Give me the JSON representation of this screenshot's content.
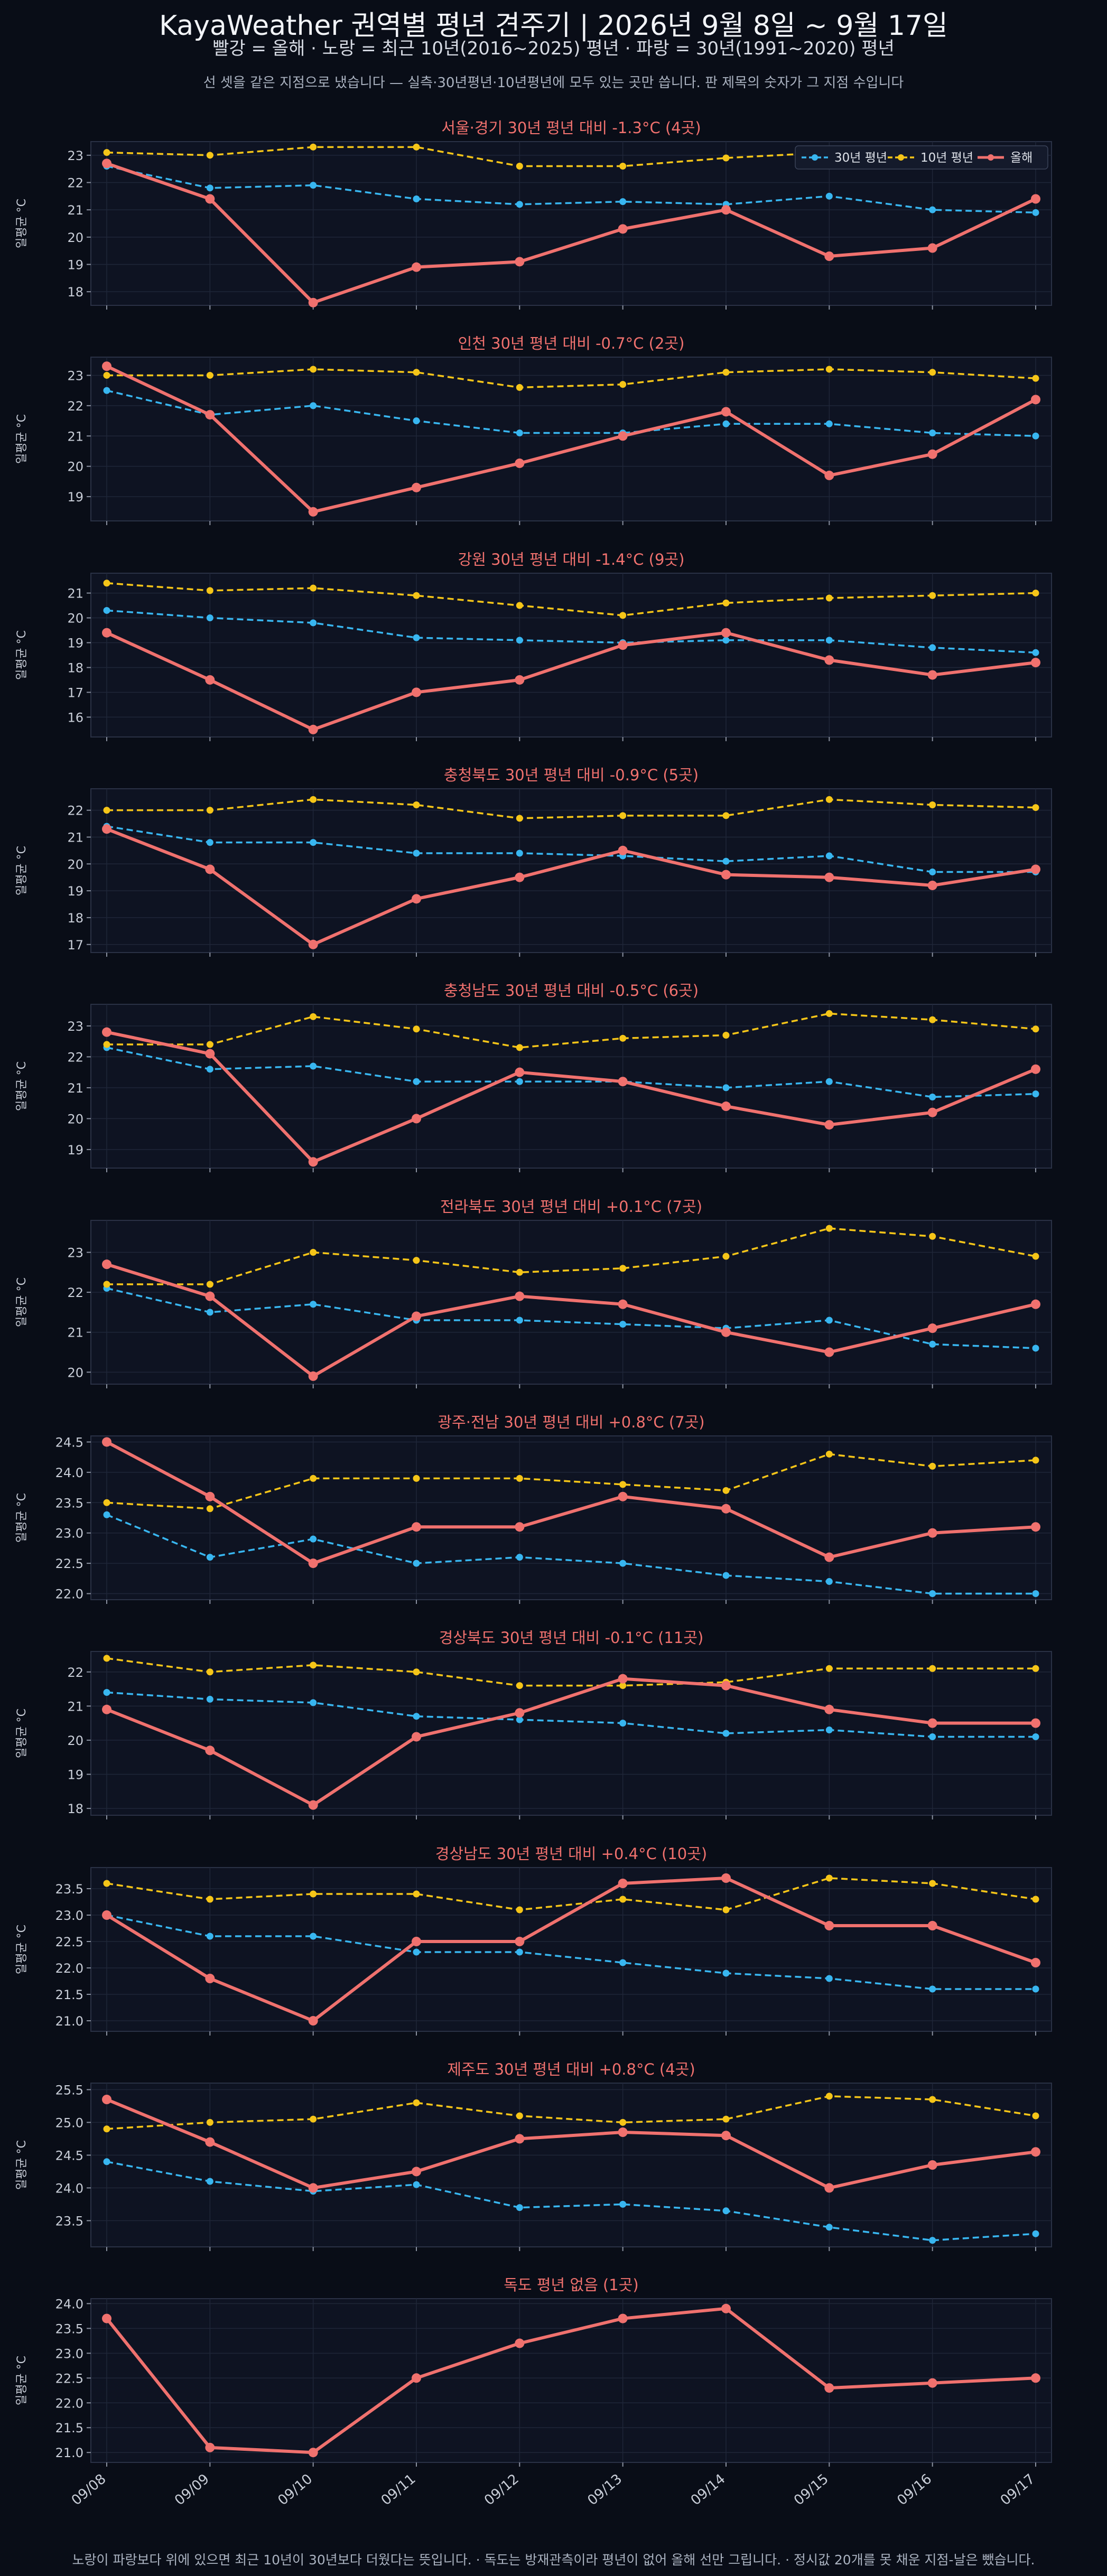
{
  "header": {
    "title": "KayaWeather 권역별 평년 견주기 | 2026년 9월 8일 ~ 9월 17일",
    "subtitle": "빨강 = 올해 · 노랑 = 최근 10년(2016~2025) 평년 · 파랑 = 30년(1991~2020) 평년",
    "note": "선 셋을 같은 지점으로 냈습니다 — 실측·30년평년·10년평년에 모두 있는 곳만 씁니다. 판 제목의 숫자가 그 지점 수입니다"
  },
  "footer": "노랑이 파랑보다 위에 있으면 최근 10년이 30년보다 더웠다는 뜻입니다. · 독도는 방재관측이라 평년이 없어 올해 선만 그립니다. · 정시값 20개를 못 채운 지점-날은 뺐습니다.",
  "colors": {
    "this_year": "#f0716e",
    "ten_year": "#f5c518",
    "thirty_year": "#38b6f0",
    "panel_bg": "#0e1322",
    "grid": "#1f2638",
    "text": "#c9ced8",
    "title": "#f0716e"
  },
  "chart_data": {
    "type": "line",
    "x": [
      "09/08",
      "09/09",
      "09/10",
      "09/11",
      "09/12",
      "09/13",
      "09/14",
      "09/15",
      "09/16",
      "09/17"
    ],
    "ylabel": "일평균 °C",
    "legend": {
      "placement": "top-right",
      "entries": [
        "30년 평년",
        "10년 평년",
        "올해"
      ]
    },
    "grid": true,
    "panels": [
      {
        "title": "서울·경기 30년 평년 대비 -1.3°C (4곳)",
        "ylim": [
          17.5,
          23.5
        ],
        "yticks": [
          18,
          19,
          20,
          21,
          22,
          23
        ],
        "series": [
          {
            "name": "30년 평년",
            "values": [
              22.6,
              21.8,
              21.9,
              21.4,
              21.2,
              21.3,
              21.2,
              21.5,
              21.0,
              20.9
            ]
          },
          {
            "name": "10년 평년",
            "values": [
              23.1,
              23.0,
              23.3,
              23.3,
              22.6,
              22.6,
              22.9,
              23.1,
              23.2,
              23.2
            ]
          },
          {
            "name": "올해",
            "values": [
              22.7,
              21.4,
              17.6,
              18.9,
              19.1,
              20.3,
              21.0,
              19.3,
              19.6,
              21.4
            ]
          }
        ]
      },
      {
        "title": "인천 30년 평년 대비 -0.7°C (2곳)",
        "ylim": [
          18.2,
          23.6
        ],
        "yticks": [
          19,
          20,
          21,
          22,
          23
        ],
        "series": [
          {
            "name": "30년 평년",
            "values": [
              22.5,
              21.7,
              22.0,
              21.5,
              21.1,
              21.1,
              21.4,
              21.4,
              21.1,
              21.0
            ]
          },
          {
            "name": "10년 평년",
            "values": [
              23.0,
              23.0,
              23.2,
              23.1,
              22.6,
              22.7,
              23.1,
              23.2,
              23.1,
              22.9
            ]
          },
          {
            "name": "올해",
            "values": [
              23.3,
              21.7,
              18.5,
              19.3,
              20.1,
              21.0,
              21.8,
              19.7,
              20.4,
              22.2
            ]
          }
        ]
      },
      {
        "title": "강원 30년 평년 대비 -1.4°C (9곳)",
        "ylim": [
          15.2,
          21.8
        ],
        "yticks": [
          16,
          17,
          18,
          19,
          20,
          21
        ],
        "series": [
          {
            "name": "30년 평년",
            "values": [
              20.3,
              20.0,
              19.8,
              19.2,
              19.1,
              19.0,
              19.1,
              19.1,
              18.8,
              18.6
            ]
          },
          {
            "name": "10년 평년",
            "values": [
              21.4,
              21.1,
              21.2,
              20.9,
              20.5,
              20.1,
              20.6,
              20.8,
              20.9,
              21.0
            ]
          },
          {
            "name": "올해",
            "values": [
              19.4,
              17.5,
              15.5,
              17.0,
              17.5,
              18.9,
              19.4,
              18.3,
              17.7,
              18.2
            ]
          }
        ]
      },
      {
        "title": "충청북도 30년 평년 대비 -0.9°C (5곳)",
        "ylim": [
          16.7,
          22.8
        ],
        "yticks": [
          17,
          18,
          19,
          20,
          21,
          22
        ],
        "series": [
          {
            "name": "30년 평년",
            "values": [
              21.4,
              20.8,
              20.8,
              20.4,
              20.4,
              20.3,
              20.1,
              20.3,
              19.7,
              19.7
            ]
          },
          {
            "name": "10년 평년",
            "values": [
              22.0,
              22.0,
              22.4,
              22.2,
              21.7,
              21.8,
              21.8,
              22.4,
              22.2,
              22.1
            ]
          },
          {
            "name": "올해",
            "values": [
              21.3,
              19.8,
              17.0,
              18.7,
              19.5,
              20.5,
              19.6,
              19.5,
              19.2,
              19.8
            ]
          }
        ]
      },
      {
        "title": "충청남도 30년 평년 대비 -0.5°C (6곳)",
        "ylim": [
          18.4,
          23.7
        ],
        "yticks": [
          19,
          20,
          21,
          22,
          23
        ],
        "series": [
          {
            "name": "30년 평년",
            "values": [
              22.3,
              21.6,
              21.7,
              21.2,
              21.2,
              21.2,
              21.0,
              21.2,
              20.7,
              20.8
            ]
          },
          {
            "name": "10년 평년",
            "values": [
              22.4,
              22.4,
              23.3,
              22.9,
              22.3,
              22.6,
              22.7,
              23.4,
              23.2,
              22.9
            ]
          },
          {
            "name": "올해",
            "values": [
              22.8,
              22.1,
              18.6,
              20.0,
              21.5,
              21.2,
              20.4,
              19.8,
              20.2,
              21.6
            ]
          }
        ]
      },
      {
        "title": "전라북도 30년 평년 대비 +0.1°C (7곳)",
        "ylim": [
          19.7,
          23.8
        ],
        "yticks": [
          20,
          21,
          22,
          23
        ],
        "series": [
          {
            "name": "30년 평년",
            "values": [
              22.1,
              21.5,
              21.7,
              21.3,
              21.3,
              21.2,
              21.1,
              21.3,
              20.7,
              20.6
            ]
          },
          {
            "name": "10년 평년",
            "values": [
              22.2,
              22.2,
              23.0,
              22.8,
              22.5,
              22.6,
              22.9,
              23.6,
              23.4,
              22.9
            ]
          },
          {
            "name": "올해",
            "values": [
              22.7,
              21.9,
              19.9,
              21.4,
              21.9,
              21.7,
              21.0,
              20.5,
              21.1,
              21.7
            ]
          }
        ]
      },
      {
        "title": "광주·전남 30년 평년 대비 +0.8°C (7곳)",
        "ylim": [
          21.9,
          24.6
        ],
        "yticks": [
          22.0,
          22.5,
          23.0,
          23.5,
          24.0,
          24.5
        ],
        "series": [
          {
            "name": "30년 평년",
            "values": [
              23.3,
              22.6,
              22.9,
              22.5,
              22.6,
              22.5,
              22.3,
              22.2,
              22.0,
              22.0
            ]
          },
          {
            "name": "10년 평년",
            "values": [
              23.5,
              23.4,
              23.9,
              23.9,
              23.9,
              23.8,
              23.7,
              24.3,
              24.1,
              24.2
            ]
          },
          {
            "name": "올해",
            "values": [
              24.5,
              23.6,
              22.5,
              23.1,
              23.1,
              23.6,
              23.4,
              22.6,
              23.0,
              23.1
            ]
          }
        ]
      },
      {
        "title": "경상북도 30년 평년 대비 -0.1°C (11곳)",
        "ylim": [
          17.8,
          22.6
        ],
        "yticks": [
          18,
          19,
          20,
          21,
          22
        ],
        "series": [
          {
            "name": "30년 평년",
            "values": [
              21.4,
              21.2,
              21.1,
              20.7,
              20.6,
              20.5,
              20.2,
              20.3,
              20.1,
              20.1
            ]
          },
          {
            "name": "10년 평년",
            "values": [
              22.4,
              22.0,
              22.2,
              22.0,
              21.6,
              21.6,
              21.7,
              22.1,
              22.1,
              22.1
            ]
          },
          {
            "name": "올해",
            "values": [
              20.9,
              19.7,
              18.1,
              20.1,
              20.8,
              21.8,
              21.6,
              20.9,
              20.5,
              20.5
            ]
          }
        ]
      },
      {
        "title": "경상남도 30년 평년 대비 +0.4°C (10곳)",
        "ylim": [
          20.8,
          23.9
        ],
        "yticks": [
          21.0,
          21.5,
          22.0,
          22.5,
          23.0,
          23.5
        ],
        "series": [
          {
            "name": "30년 평년",
            "values": [
              23.0,
              22.6,
              22.6,
              22.3,
              22.3,
              22.1,
              21.9,
              21.8,
              21.6,
              21.6
            ]
          },
          {
            "name": "10년 평년",
            "values": [
              23.6,
              23.3,
              23.4,
              23.4,
              23.1,
              23.3,
              23.1,
              23.7,
              23.6,
              23.3
            ]
          },
          {
            "name": "올해",
            "values": [
              23.0,
              21.8,
              21.0,
              22.5,
              22.5,
              23.6,
              23.7,
              22.8,
              22.8,
              22.1
            ]
          }
        ]
      },
      {
        "title": "제주도 30년 평년 대비 +0.8°C (4곳)",
        "ylim": [
          23.1,
          25.6
        ],
        "yticks": [
          23.5,
          24.0,
          24.5,
          25.0,
          25.5
        ],
        "series": [
          {
            "name": "30년 평년",
            "values": [
              24.4,
              24.1,
              23.95,
              24.05,
              23.7,
              23.75,
              23.65,
              23.4,
              23.2,
              23.3
            ]
          },
          {
            "name": "10년 평년",
            "values": [
              24.9,
              25.0,
              25.05,
              25.3,
              25.1,
              25.0,
              25.05,
              25.4,
              25.35,
              25.1
            ]
          },
          {
            "name": "올해",
            "values": [
              25.35,
              24.7,
              24.0,
              24.25,
              24.75,
              24.85,
              24.8,
              24.0,
              24.35,
              24.55
            ]
          }
        ]
      },
      {
        "title": "독도 평년 없음 (1곳)",
        "ylim": [
          20.8,
          24.1
        ],
        "yticks": [
          21.0,
          21.5,
          22.0,
          22.5,
          23.0,
          23.5,
          24.0
        ],
        "series": [
          {
            "name": "올해",
            "values": [
              23.7,
              21.1,
              21.0,
              22.5,
              23.2,
              23.7,
              23.9,
              22.3,
              22.4,
              22.5
            ]
          }
        ]
      }
    ]
  }
}
